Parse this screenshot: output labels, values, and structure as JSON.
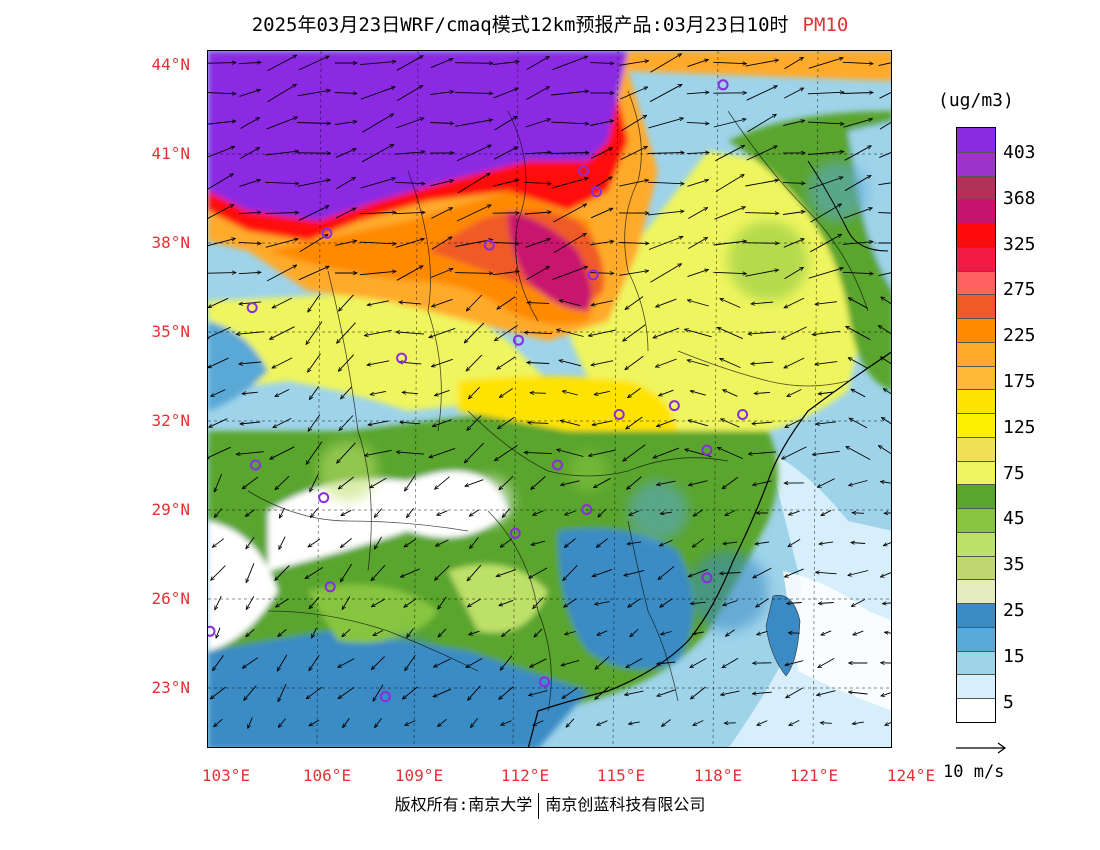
{
  "header": {
    "title": "2025年03月23日WRF/cmaq模式12km预报产品:03月23日10时",
    "pollutant": "PM10"
  },
  "axes": {
    "lat_labels": [
      "44°N",
      "41°N",
      "38°N",
      "35°N",
      "32°N",
      "29°N",
      "26°N",
      "23°N"
    ],
    "lon_labels": [
      "103°E",
      "106°E",
      "109°E",
      "112°E",
      "115°E",
      "118°E",
      "121°E",
      "124°E"
    ]
  },
  "legend": {
    "unit": "(ug/m3)",
    "labels": [
      "403",
      "368",
      "325",
      "275",
      "225",
      "175",
      "125",
      "75",
      "45",
      "35",
      "25",
      "15",
      "5"
    ],
    "colors": [
      "#8b2be2",
      "#9d33c9",
      "#b3305b",
      "#c8136e",
      "#ff0a0a",
      "#f31b44",
      "#ff6262",
      "#f05a28",
      "#ff8a00",
      "#ffaa2a",
      "#ffb936",
      "#ffe300",
      "#fff000",
      "#f1df55",
      "#eef55e",
      "#5aa52d",
      "#87c541",
      "#bde069",
      "#bed76e",
      "#e4ecc0",
      "#3a8bc4",
      "#5aa8d6",
      "#9ed3ea",
      "#d7effa",
      "#ffffff"
    ],
    "wind_ref": "10 m/s"
  },
  "map": {
    "stations": [
      {
        "lon": 118.8,
        "lat": 43.4
      },
      {
        "lon": 114.5,
        "lat": 40.5
      },
      {
        "lon": 114.9,
        "lat": 39.8
      },
      {
        "lon": 106.6,
        "lat": 38.4
      },
      {
        "lon": 111.6,
        "lat": 38.0
      },
      {
        "lon": 114.8,
        "lat": 37.0
      },
      {
        "lon": 104.3,
        "lat": 35.9
      },
      {
        "lon": 112.5,
        "lat": 34.8
      },
      {
        "lon": 108.9,
        "lat": 34.2
      },
      {
        "lon": 117.3,
        "lat": 32.6
      },
      {
        "lon": 115.6,
        "lat": 32.3
      },
      {
        "lon": 119.4,
        "lat": 32.3
      },
      {
        "lon": 118.3,
        "lat": 31.1
      },
      {
        "lon": 113.7,
        "lat": 30.6
      },
      {
        "lon": 104.4,
        "lat": 30.6
      },
      {
        "lon": 106.5,
        "lat": 29.5
      },
      {
        "lon": 114.6,
        "lat": 29.1
      },
      {
        "lon": 112.4,
        "lat": 28.3
      },
      {
        "lon": 106.7,
        "lat": 26.5
      },
      {
        "lon": 118.3,
        "lat": 26.8
      },
      {
        "lon": 103.0,
        "lat": 25.0
      },
      {
        "lon": 113.3,
        "lat": 23.3
      },
      {
        "lon": 108.4,
        "lat": 22.8
      }
    ]
  },
  "footer": {
    "left": "版权所有:南京大学",
    "right": "南京创蓝科技有限公司"
  }
}
